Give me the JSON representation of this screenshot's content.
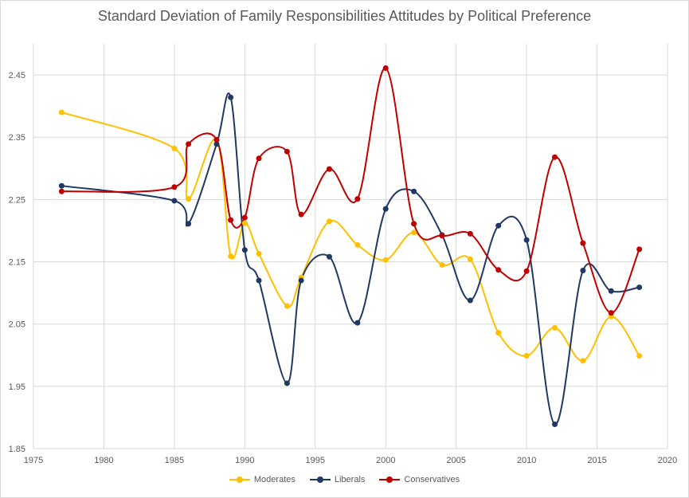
{
  "chart_data": {
    "type": "line",
    "title": "Standard Deviation of Family Responsibilities Attitudes by Political Preference",
    "xlabel": "",
    "ylabel": "",
    "xlim": [
      1975,
      2020
    ],
    "ylim": [
      1.85,
      2.5
    ],
    "x_ticks": [
      "1975",
      "1980",
      "1985",
      "1990",
      "1995",
      "2000",
      "2005",
      "2010",
      "2015",
      "2020"
    ],
    "y_ticks": [
      "1.85",
      "1.95",
      "2.05",
      "2.15",
      "2.25",
      "2.35",
      "2.45"
    ],
    "grid": true,
    "legend_position": "bottom",
    "series": [
      {
        "name": "Moderates",
        "color": "#ffc000",
        "points": [
          [
            1977,
            2.39
          ],
          [
            1985,
            2.332
          ],
          [
            1986,
            2.251
          ],
          [
            1988,
            2.346
          ],
          [
            1989,
            2.159
          ],
          [
            1990,
            2.212
          ],
          [
            1991,
            2.163
          ],
          [
            1993,
            2.079
          ],
          [
            1994,
            2.125
          ],
          [
            1996,
            2.215
          ],
          [
            1998,
            2.177
          ],
          [
            2000,
            2.153
          ],
          [
            2002,
            2.197
          ],
          [
            2004,
            2.145
          ],
          [
            2006,
            2.154
          ],
          [
            2008,
            2.036
          ],
          [
            2010,
            1.999
          ],
          [
            2012,
            2.044
          ],
          [
            2014,
            1.991
          ],
          [
            2016,
            2.062
          ],
          [
            2018,
            1.999
          ]
        ]
      },
      {
        "name": "Liberals",
        "color": "#203864",
        "points": [
          [
            1977,
            2.272
          ],
          [
            1985,
            2.248
          ],
          [
            1986,
            2.211
          ],
          [
            1988,
            2.339
          ],
          [
            1989,
            2.414
          ],
          [
            1990,
            2.169
          ],
          [
            1991,
            2.12
          ],
          [
            1993,
            1.955
          ],
          [
            1994,
            2.12
          ],
          [
            1996,
            2.158
          ],
          [
            1998,
            2.052
          ],
          [
            2000,
            2.235
          ],
          [
            2002,
            2.263
          ],
          [
            2004,
            2.193
          ],
          [
            2006,
            2.088
          ],
          [
            2008,
            2.208
          ],
          [
            2010,
            2.185
          ],
          [
            2012,
            1.889
          ],
          [
            2014,
            2.136
          ],
          [
            2016,
            2.103
          ],
          [
            2018,
            2.109
          ]
        ]
      },
      {
        "name": "Conservatives",
        "color": "#c00000",
        "points": [
          [
            1977,
            2.263
          ],
          [
            1985,
            2.27
          ],
          [
            1986,
            2.339
          ],
          [
            1988,
            2.346
          ],
          [
            1989,
            2.217
          ],
          [
            1990,
            2.221
          ],
          [
            1991,
            2.316
          ],
          [
            1993,
            2.327
          ],
          [
            1994,
            2.226
          ],
          [
            1996,
            2.299
          ],
          [
            1998,
            2.251
          ],
          [
            2000,
            2.461
          ],
          [
            2002,
            2.211
          ],
          [
            2004,
            2.192
          ],
          [
            2006,
            2.195
          ],
          [
            2008,
            2.137
          ],
          [
            2010,
            2.135
          ],
          [
            2012,
            2.318
          ],
          [
            2014,
            2.18
          ],
          [
            2016,
            2.068
          ],
          [
            2018,
            2.17
          ]
        ]
      }
    ]
  }
}
